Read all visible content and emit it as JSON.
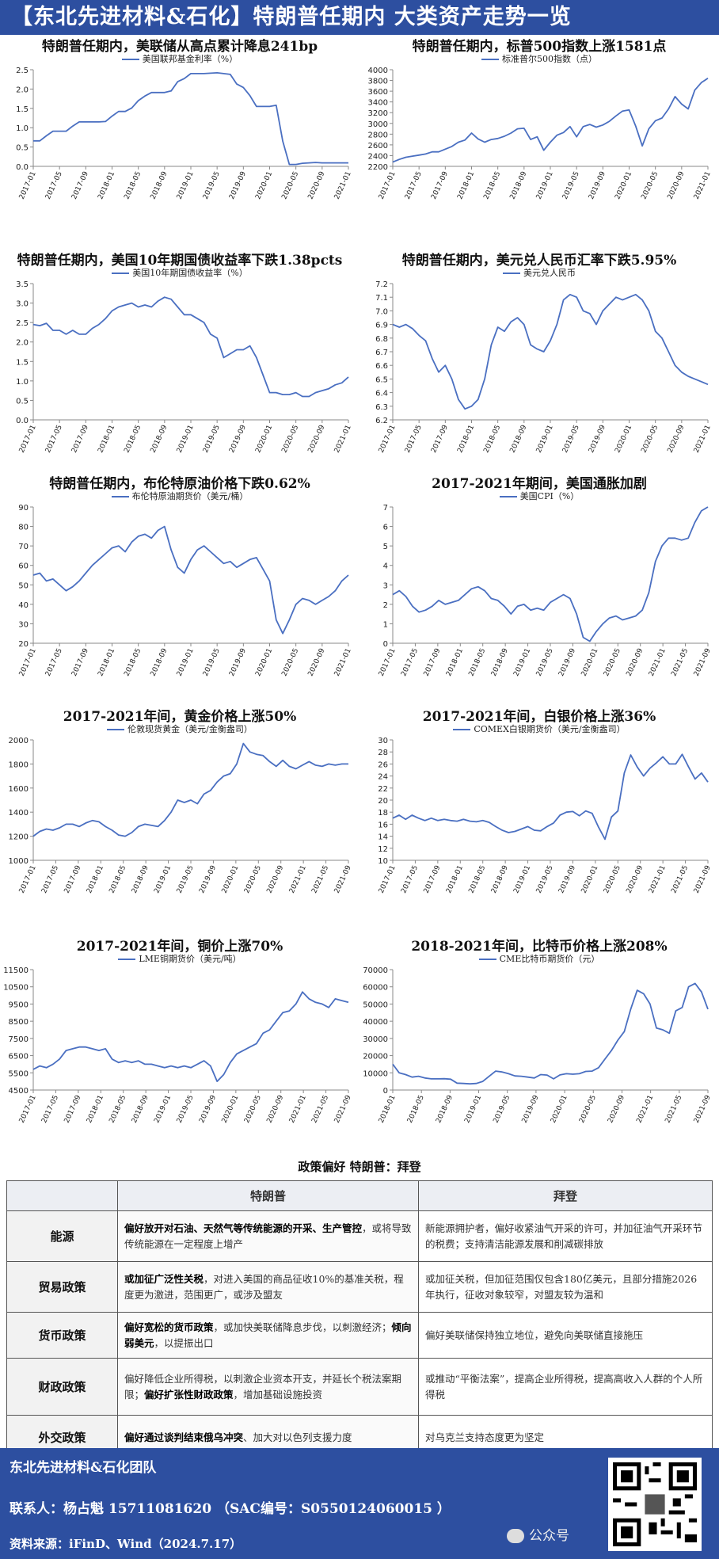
{
  "banner": "【东北先进材料&石化】特朗普任期内  大类资产走势一览",
  "colors": {
    "line": "#4a6fc1",
    "banner": "#2d4fa0"
  },
  "charts": [
    {
      "title": "特朗普任期内，美联储从高点累计降息241bp",
      "legend": "美国联邦基金利率（%）",
      "chart_data": {
        "type": "line",
        "x_ticks": [
          "2017-01",
          "2017-05",
          "2017-09",
          "2018-01",
          "2018-05",
          "2018-09",
          "2019-01",
          "2019-05",
          "2019-09",
          "2020-01",
          "2020-05",
          "2020-09",
          "2021-01"
        ],
        "ylim": [
          0,
          2.5
        ],
        "y_ticks": [
          "0.0",
          "0.5",
          "1.0",
          "1.5",
          "2.0",
          "2.5"
        ],
        "values": [
          0.66,
          0.66,
          0.79,
          0.91,
          0.91,
          0.91,
          1.04,
          1.15,
          1.15,
          1.15,
          1.15,
          1.16,
          1.3,
          1.42,
          1.42,
          1.51,
          1.7,
          1.82,
          1.91,
          1.91,
          1.91,
          1.95,
          2.19,
          2.27,
          2.4,
          2.4,
          2.4,
          2.41,
          2.42,
          2.4,
          2.38,
          2.13,
          2.04,
          1.83,
          1.55,
          1.55,
          1.55,
          1.58,
          0.65,
          0.05,
          0.05,
          0.08,
          0.09,
          0.1,
          0.09,
          0.09,
          0.09,
          0.09,
          0.09
        ]
      }
    },
    {
      "title": "特朗普任期内，标普500指数上涨1581点",
      "legend": "标准普尔500指数（点）",
      "chart_data": {
        "type": "line",
        "x_ticks": [
          "2017-01",
          "2017-05",
          "2017-09",
          "2018-01",
          "2018-05",
          "2018-09",
          "2019-01",
          "2019-05",
          "2019-09",
          "2020-01",
          "2020-05",
          "2020-09",
          "2021-01"
        ],
        "ylim": [
          2200,
          4000
        ],
        "y_ticks": [
          "2200",
          "2400",
          "2600",
          "2800",
          "3000",
          "3200",
          "3400",
          "3600",
          "3800",
          "4000"
        ],
        "values": [
          2280,
          2330,
          2370,
          2390,
          2410,
          2430,
          2470,
          2470,
          2520,
          2570,
          2650,
          2690,
          2820,
          2710,
          2650,
          2700,
          2720,
          2760,
          2820,
          2900,
          2910,
          2700,
          2750,
          2500,
          2650,
          2780,
          2830,
          2940,
          2750,
          2940,
          2980,
          2930,
          2970,
          3040,
          3140,
          3230,
          3250,
          2950,
          2580,
          2900,
          3050,
          3100,
          3270,
          3500,
          3360,
          3270,
          3620,
          3760,
          3840
        ]
      }
    },
    {
      "title": "特朗普任期内，美国10年期国债收益率下跌1.38pcts",
      "legend": "美国10年期国债收益率（%）",
      "chart_data": {
        "type": "line",
        "x_ticks": [
          "2017-01",
          "2017-05",
          "2017-09",
          "2018-01",
          "2018-05",
          "2018-09",
          "2019-01",
          "2019-05",
          "2019-09",
          "2020-01",
          "2020-05",
          "2020-09",
          "2021-01"
        ],
        "ylim": [
          0,
          3.5
        ],
        "y_ticks": [
          "0.0",
          "0.5",
          "1.0",
          "1.5",
          "2.0",
          "2.5",
          "3.0",
          "3.5"
        ],
        "values": [
          2.45,
          2.42,
          2.48,
          2.3,
          2.3,
          2.2,
          2.3,
          2.2,
          2.2,
          2.35,
          2.45,
          2.6,
          2.8,
          2.9,
          2.95,
          3.0,
          2.9,
          2.95,
          2.9,
          3.05,
          3.15,
          3.1,
          2.9,
          2.7,
          2.7,
          2.6,
          2.5,
          2.2,
          2.1,
          1.6,
          1.7,
          1.8,
          1.8,
          1.9,
          1.6,
          1.15,
          0.7,
          0.7,
          0.65,
          0.65,
          0.7,
          0.6,
          0.6,
          0.7,
          0.75,
          0.8,
          0.9,
          0.95,
          1.1
        ]
      }
    },
    {
      "title": "特朗普任期内，美元兑人民币汇率下跌5.95%",
      "legend": "美元兑人民币",
      "chart_data": {
        "type": "line",
        "x_ticks": [
          "2017-01",
          "2017-05",
          "2017-09",
          "2018-01",
          "2018-05",
          "2018-09",
          "2019-01",
          "2019-05",
          "2019-09",
          "2020-01",
          "2020-05",
          "2020-09",
          "2021-01"
        ],
        "ylim": [
          6.2,
          7.2
        ],
        "y_ticks": [
          "6.2",
          "6.3",
          "6.4",
          "6.5",
          "6.6",
          "6.7",
          "6.8",
          "6.9",
          "7.0",
          "7.1",
          "7.2"
        ],
        "values": [
          6.9,
          6.88,
          6.9,
          6.87,
          6.82,
          6.78,
          6.65,
          6.55,
          6.6,
          6.5,
          6.35,
          6.28,
          6.3,
          6.35,
          6.5,
          6.75,
          6.88,
          6.85,
          6.92,
          6.95,
          6.9,
          6.75,
          6.72,
          6.7,
          6.78,
          6.9,
          7.08,
          7.12,
          7.1,
          7.0,
          6.98,
          6.9,
          7.0,
          7.05,
          7.1,
          7.08,
          7.1,
          7.12,
          7.08,
          7.0,
          6.85,
          6.8,
          6.7,
          6.6,
          6.55,
          6.52,
          6.5,
          6.48,
          6.46
        ]
      }
    },
    {
      "title": "特朗普任期内，布伦特原油价格下跌0.62%",
      "legend": "布伦特原油期货价（美元/桶）",
      "chart_data": {
        "type": "line",
        "x_ticks": [
          "2017-01",
          "2017-05",
          "2017-09",
          "2018-01",
          "2018-05",
          "2018-09",
          "2019-01",
          "2019-05",
          "2019-09",
          "2020-01",
          "2020-05",
          "2020-09",
          "2021-01"
        ],
        "ylim": [
          20,
          90
        ],
        "y_ticks": [
          "20",
          "30",
          "40",
          "50",
          "60",
          "70",
          "80",
          "90"
        ],
        "values": [
          55,
          56,
          52,
          53,
          50,
          47,
          49,
          52,
          56,
          60,
          63,
          66,
          69,
          70,
          67,
          72,
          75,
          76,
          74,
          78,
          80,
          68,
          59,
          56,
          63,
          68,
          70,
          67,
          64,
          61,
          62,
          59,
          61,
          63,
          64,
          58,
          52,
          32,
          25,
          32,
          40,
          43,
          42,
          40,
          42,
          44,
          47,
          52,
          55
        ]
      }
    },
    {
      "title": "2017-2021年期间，美国通胀加剧",
      "legend": "美国CPI（%）",
      "chart_data": {
        "type": "line",
        "x_ticks": [
          "2017-01",
          "2017-05",
          "2017-09",
          "2018-01",
          "2018-05",
          "2018-09",
          "2019-01",
          "2019-05",
          "2019-09",
          "2020-01",
          "2020-05",
          "2020-09",
          "2021-01",
          "2021-05",
          "2021-09"
        ],
        "ylim": [
          0,
          7
        ],
        "y_ticks": [
          "0",
          "1",
          "2",
          "3",
          "4",
          "5",
          "6",
          "7"
        ],
        "values": [
          2.5,
          2.7,
          2.4,
          1.9,
          1.6,
          1.7,
          1.9,
          2.2,
          2.0,
          2.1,
          2.2,
          2.5,
          2.8,
          2.9,
          2.7,
          2.3,
          2.2,
          1.9,
          1.5,
          1.9,
          2.0,
          1.7,
          1.8,
          1.7,
          2.1,
          2.3,
          2.5,
          2.3,
          1.5,
          0.3,
          0.1,
          0.6,
          1.0,
          1.3,
          1.4,
          1.2,
          1.3,
          1.4,
          1.7,
          2.6,
          4.2,
          5.0,
          5.4,
          5.4,
          5.3,
          5.4,
          6.2,
          6.8,
          7.0
        ]
      }
    },
    {
      "title": "2017-2021年间，黄金价格上涨50%",
      "legend": "伦敦现货黄金（美元/金衡盎司）",
      "chart_data": {
        "type": "line",
        "x_ticks": [
          "2017-01",
          "2017-05",
          "2017-09",
          "2018-01",
          "2018-05",
          "2018-09",
          "2019-01",
          "2019-05",
          "2019-09",
          "2020-01",
          "2020-05",
          "2020-09",
          "2021-01",
          "2021-05",
          "2021-09"
        ],
        "ylim": [
          1000,
          2000
        ],
        "y_ticks": [
          "1000",
          "1200",
          "1400",
          "1600",
          "1800",
          "2000"
        ],
        "values": [
          1200,
          1240,
          1260,
          1250,
          1270,
          1300,
          1300,
          1280,
          1310,
          1330,
          1320,
          1280,
          1250,
          1210,
          1200,
          1230,
          1280,
          1300,
          1290,
          1280,
          1330,
          1400,
          1500,
          1480,
          1500,
          1470,
          1550,
          1580,
          1650,
          1700,
          1720,
          1800,
          1970,
          1900,
          1880,
          1870,
          1820,
          1780,
          1830,
          1780,
          1760,
          1790,
          1820,
          1790,
          1780,
          1800,
          1790,
          1800,
          1800
        ]
      }
    },
    {
      "title": "2017-2021年间，白银价格上涨36%",
      "legend": "COMEX白银期货价（美元/金衡盎司）",
      "chart_data": {
        "type": "line",
        "x_ticks": [
          "2017-01",
          "2017-05",
          "2017-09",
          "2018-01",
          "2018-05",
          "2018-09",
          "2019-01",
          "2019-05",
          "2019-09",
          "2020-01",
          "2020-05",
          "2020-09",
          "2021-01",
          "2021-05",
          "2021-09"
        ],
        "ylim": [
          10,
          30
        ],
        "y_ticks": [
          "10",
          "12",
          "14",
          "16",
          "18",
          "20",
          "22",
          "24",
          "26",
          "28",
          "30"
        ],
        "values": [
          17,
          17.5,
          16.8,
          17.5,
          17,
          16.6,
          17,
          16.6,
          16.8,
          16.6,
          16.5,
          16.8,
          16.5,
          16.4,
          16.6,
          16.3,
          15.6,
          15,
          14.6,
          14.8,
          15.2,
          15.6,
          15.0,
          14.9,
          15.6,
          16.2,
          17.5,
          18,
          18.1,
          17.4,
          18.2,
          17.8,
          15.5,
          13.5,
          17.2,
          18.2,
          24.5,
          27.5,
          25.5,
          24,
          25.3,
          26.2,
          27.2,
          26,
          26,
          27.6,
          25.5,
          23.5,
          24.5,
          23
        ]
      }
    },
    {
      "title": "2017-2021年间，铜价上涨70%",
      "legend": "LME铜期货价（美元/吨）",
      "chart_data": {
        "type": "line",
        "x_ticks": [
          "2017-01",
          "2017-05",
          "2017-09",
          "2018-01",
          "2018-05",
          "2018-09",
          "2019-01",
          "2019-05",
          "2019-09",
          "2020-01",
          "2020-05",
          "2020-09",
          "2021-01",
          "2021-05",
          "2021-09"
        ],
        "ylim": [
          4500,
          11500
        ],
        "y_ticks": [
          "4500",
          "5500",
          "6500",
          "7500",
          "8500",
          "9500",
          "10500",
          "11500"
        ],
        "values": [
          5700,
          5900,
          5800,
          6000,
          6300,
          6800,
          6900,
          7000,
          7000,
          6900,
          6800,
          6900,
          6300,
          6100,
          6200,
          6100,
          6200,
          6000,
          6000,
          5900,
          5800,
          5900,
          5800,
          5900,
          5800,
          6000,
          6200,
          5900,
          5000,
          5400,
          6100,
          6600,
          6800,
          7000,
          7200,
          7800,
          8000,
          8500,
          9000,
          9100,
          9500,
          10200,
          9800,
          9600,
          9500,
          9300,
          9800,
          9700,
          9600
        ]
      }
    },
    {
      "title": "2018-2021年间，比特币价格上涨208%",
      "legend": "CME比特币期货价（元）",
      "chart_data": {
        "type": "line",
        "x_ticks": [
          "2018-01",
          "2018-05",
          "2018-09",
          "2019-01",
          "2019-05",
          "2019-09",
          "2020-01",
          "2020-05",
          "2020-09",
          "2021-01",
          "2021-05",
          "2021-09"
        ],
        "ylim": [
          0,
          70000
        ],
        "y_ticks": [
          "0",
          "10000",
          "20000",
          "30000",
          "40000",
          "50000",
          "60000",
          "70000"
        ],
        "values": [
          15000,
          10000,
          9000,
          7500,
          8000,
          7000,
          6500,
          6500,
          6600,
          6300,
          4000,
          3800,
          3600,
          3800,
          5000,
          8000,
          11000,
          10500,
          9500,
          8200,
          8000,
          7500,
          7000,
          9000,
          8700,
          6500,
          8800,
          9500,
          9200,
          9500,
          10800,
          11000,
          13000,
          18000,
          23000,
          29000,
          34000,
          47000,
          58000,
          56000,
          50000,
          36000,
          35000,
          33000,
          46000,
          48000,
          60000,
          62000,
          57000,
          47000
        ]
      }
    }
  ],
  "policy": {
    "title": "政策偏好 特朗普：拜登",
    "head": [
      "",
      "特朗普",
      "拜登"
    ],
    "rows": [
      {
        "cat": "能源",
        "t_bold": "偏好放开对石油、天然气等传统能源的开采、生产管控",
        "t_rest": "，或将导致传统能源在一定程度上增产",
        "b": "新能源拥护者，偏好收紧油气开采的许可，并加征油气开采环节的税费；支持清洁能源发展和削减碳排放"
      },
      {
        "cat": "贸易政策",
        "t_bold": "或加征广泛性关税",
        "t_rest": "，对进入美国的商品征收10%的基准关税，程度更为激进，范围更广，或涉及盟友",
        "b": "或加征关税，但加征范围仅包含180亿美元，且部分措施2026年执行，征收对象较窄，对盟友较为温和"
      },
      {
        "cat": "货币政策",
        "t_bold": "偏好宽松的货币政策",
        "t_rest": "，或加快美联储降息步伐，以刺激经济；",
        "t_bold2": "倾向弱美元",
        "t_rest2": "，以提振出口",
        "b": "偏好美联储保持独立地位，避免向美联储直接施压"
      },
      {
        "cat": "财政政策",
        "t_plain": "偏好降低企业所得税，以刺激企业资本开支，并延长个税法案期限；",
        "t_bold": "偏好扩张性财政政策",
        "t_rest": "，增加基础设施投资",
        "b": "或推动“平衡法案”，提高企业所得税，提高高收入人群的个人所得税"
      },
      {
        "cat": "外交政策",
        "t_bold": "偏好通过谈判结束俄乌冲突",
        "t_rest": "、加大对以色列支援力度",
        "b": "对乌克兰支持态度更为坚定"
      }
    ]
  },
  "footer": {
    "team": "东北先进材料&石化团队",
    "contact": "联系人：杨占魁 15711081620 （SAC编号：S0550124060015 ）",
    "source": "资料来源：iFinD、Wind（2024.7.17）",
    "wechat": "公众号"
  }
}
